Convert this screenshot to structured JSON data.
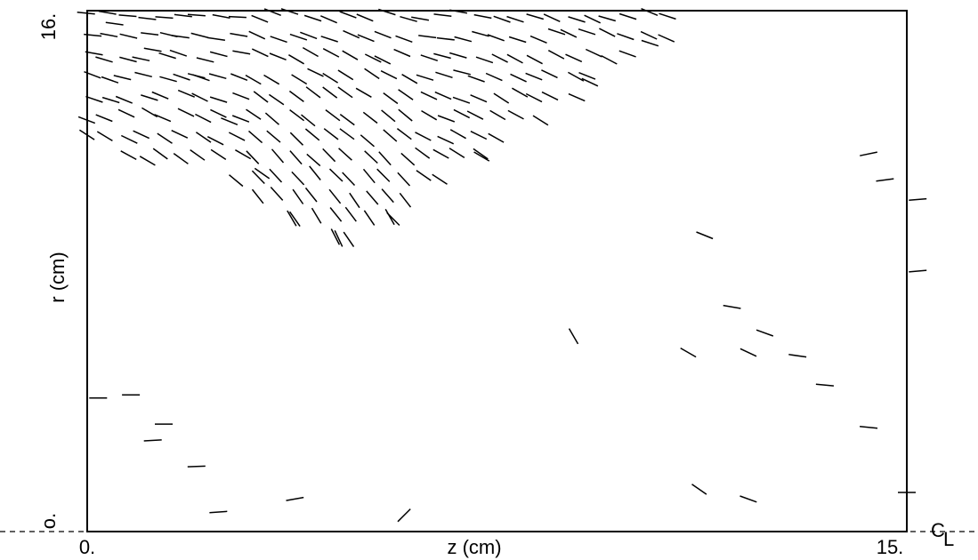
{
  "chart_data": {
    "type": "scatter",
    "marker": "short line segments (direction field)",
    "xlabel": "z (cm)",
    "ylabel": "r (cm)",
    "xlim": [
      0,
      15
    ],
    "ylim": [
      0,
      16
    ],
    "x_tick_labels": [
      "0.",
      "15."
    ],
    "y_tick_labels": [
      "o.",
      "16."
    ],
    "centerline_label": "C",
    "centerline_subscript": "L",
    "grid": false,
    "legend": "none",
    "line_color": "#000000",
    "sample_segments": [
      {
        "x": 0.5,
        "y": 15.6,
        "angle": -8
      },
      {
        "x": 1.2,
        "y": 14.8,
        "angle": -10
      },
      {
        "x": 2.0,
        "y": 14.0,
        "angle": -14
      },
      {
        "x": 2.6,
        "y": 12.6,
        "angle": -22
      },
      {
        "x": 3.2,
        "y": 11.0,
        "angle": -35
      },
      {
        "x": 3.8,
        "y": 9.6,
        "angle": -55
      },
      {
        "x": 4.6,
        "y": 9.0,
        "angle": -65
      },
      {
        "x": 5.6,
        "y": 9.6,
        "angle": -45
      },
      {
        "x": 7.2,
        "y": 11.6,
        "angle": -35
      },
      {
        "x": 9.2,
        "y": 13.8,
        "angle": -25
      },
      {
        "x": 10.3,
        "y": 15.0,
        "angle": -18
      },
      {
        "x": 0.2,
        "y": 4.1,
        "angle": 0
      },
      {
        "x": 0.8,
        "y": 4.2,
        "angle": 0
      },
      {
        "x": 1.4,
        "y": 3.3,
        "angle": 0
      },
      {
        "x": 1.2,
        "y": 2.8,
        "angle": 3
      },
      {
        "x": 2.0,
        "y": 2.0,
        "angle": 2
      },
      {
        "x": 2.4,
        "y": 0.6,
        "angle": 4
      },
      {
        "x": 3.8,
        "y": 1.0,
        "angle": 10
      },
      {
        "x": 5.8,
        "y": 0.5,
        "angle": 45
      },
      {
        "x": 8.9,
        "y": 6.0,
        "angle": -60
      },
      {
        "x": 11.0,
        "y": 5.5,
        "angle": -30
      },
      {
        "x": 11.3,
        "y": 9.1,
        "angle": -22
      },
      {
        "x": 11.8,
        "y": 6.9,
        "angle": -10
      },
      {
        "x": 12.1,
        "y": 5.5,
        "angle": -25
      },
      {
        "x": 12.4,
        "y": 6.1,
        "angle": -20
      },
      {
        "x": 13.0,
        "y": 5.4,
        "angle": -8
      },
      {
        "x": 13.5,
        "y": 4.5,
        "angle": -5
      },
      {
        "x": 11.2,
        "y": 1.3,
        "angle": -35
      },
      {
        "x": 12.1,
        "y": 1.0,
        "angle": -20
      },
      {
        "x": 14.3,
        "y": 3.2,
        "angle": -6
      },
      {
        "x": 14.3,
        "y": 11.6,
        "angle": 12
      },
      {
        "x": 14.6,
        "y": 10.8,
        "angle": 8
      },
      {
        "x": 15.2,
        "y": 10.2,
        "angle": 5
      },
      {
        "x": 15.2,
        "y": 8.0,
        "angle": 5
      },
      {
        "x": 15.0,
        "y": 1.2,
        "angle": 0
      }
    ]
  }
}
